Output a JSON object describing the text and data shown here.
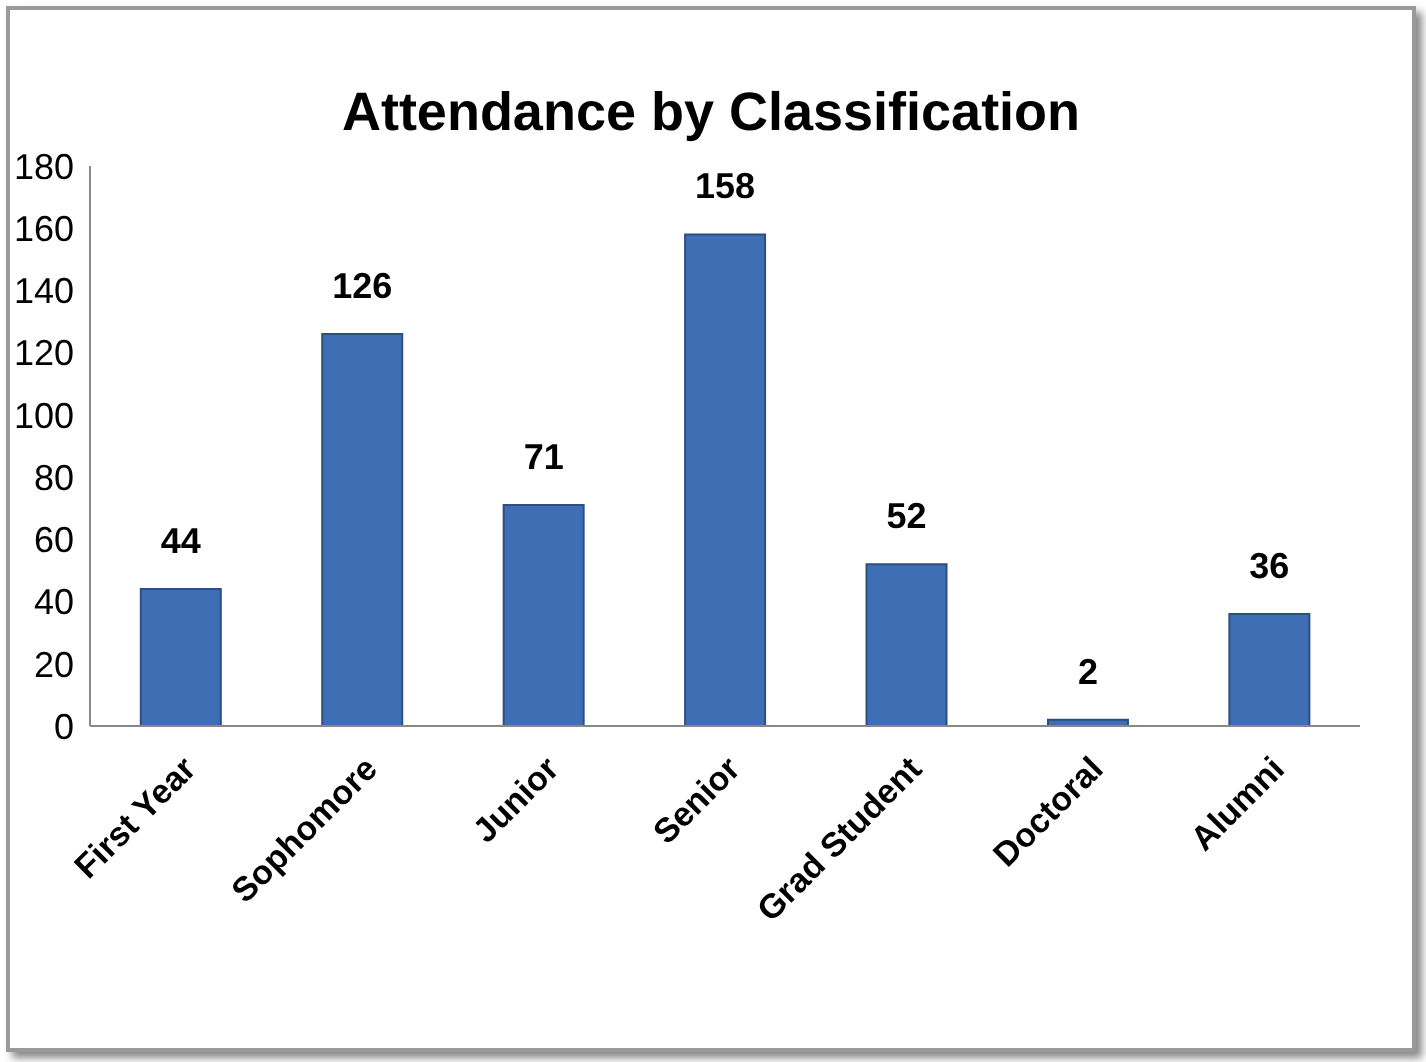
{
  "chart_data": {
    "type": "bar",
    "title": "Attendance by Classification",
    "categories": [
      "First Year",
      "Sophomore",
      "Junior",
      "Senior",
      "Grad Student",
      "Doctoral",
      "Alumni"
    ],
    "values": [
      44,
      126,
      71,
      158,
      52,
      2,
      36
    ],
    "color": "#3e6fb4",
    "ylim": [
      0,
      180
    ],
    "yticks": [
      0,
      20,
      40,
      60,
      80,
      100,
      120,
      140,
      160,
      180
    ],
    "grid": false,
    "legend": false,
    "data_labels": true
  }
}
